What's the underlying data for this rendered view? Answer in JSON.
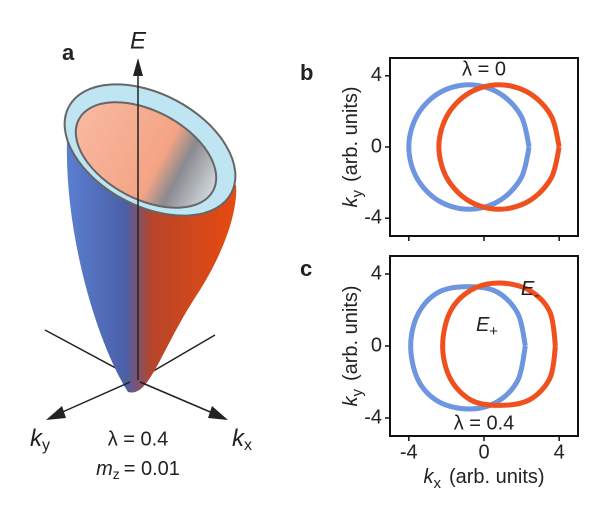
{
  "panel_a": {
    "label": "a",
    "axis_e": "E",
    "ky": {
      "symbol": "k",
      "sub": "y"
    },
    "kx": {
      "symbol": "k",
      "sub": "x"
    },
    "lambda": "λ = 0.4",
    "mz": {
      "symbol": "m",
      "sub": "z",
      "text": "= 0.01"
    }
  },
  "chart_data": [
    {
      "type": "line",
      "panel_label": "b",
      "ylabel": {
        "symbol": "k",
        "sub": "y",
        "text": "(arb. units)"
      },
      "xlim": [
        -5,
        5
      ],
      "ylim": [
        -5,
        5
      ],
      "xticks": [
        -4,
        0,
        4
      ],
      "yticks": [
        -4,
        0,
        4
      ],
      "show_xtick_labels": false,
      "annotations": [
        {
          "text": "λ = 0"
        }
      ],
      "series": [
        {
          "color": "#6d95e0",
          "x": [
            2.4,
            1.97,
            0.8,
            -0.8,
            -2.4,
            -3.57,
            -4.0,
            -3.57,
            -2.4,
            -0.8,
            0.8,
            1.97,
            2.4
          ],
          "values": [
            0,
            1.75,
            3.03,
            3.5,
            3.03,
            1.75,
            0,
            -1.75,
            -3.03,
            -3.5,
            -3.03,
            -1.75,
            0
          ]
        },
        {
          "color": "#f0501e",
          "x": [
            4.0,
            3.57,
            2.4,
            0.8,
            -0.8,
            -1.97,
            -2.4,
            -1.97,
            -0.8,
            0.8,
            2.4,
            3.57,
            4.0
          ],
          "values": [
            0,
            1.75,
            3.03,
            3.5,
            3.03,
            1.75,
            0,
            -1.75,
            -3.03,
            -3.5,
            -3.03,
            -1.75,
            0
          ]
        }
      ]
    },
    {
      "type": "line",
      "panel_label": "c",
      "ylabel": {
        "symbol": "k",
        "sub": "y",
        "text": "(arb. units)"
      },
      "xlabel": {
        "symbol": "k",
        "sub": "x",
        "text": "(arb. units)"
      },
      "xlim": [
        -5,
        5
      ],
      "ylim": [
        -5,
        5
      ],
      "xticks": [
        -4,
        0,
        4
      ],
      "yticks": [
        -4,
        0,
        4
      ],
      "show_xtick_labels": true,
      "annotations": [
        {
          "symbol": "E",
          "sub": "-"
        },
        {
          "symbol": "E",
          "sub": "+"
        },
        {
          "text": "λ = 0.4"
        }
      ],
      "series": [
        {
          "color": "#6d95e0",
          "x": [
            2.2,
            1.8,
            0.7,
            -0.8,
            -2.4,
            -3.5,
            -3.9,
            -3.5,
            -2.4,
            -0.8,
            0.7,
            1.8,
            2.2
          ],
          "values": [
            0,
            1.8,
            3.0,
            3.3,
            3.0,
            1.8,
            0,
            -1.9,
            -3.1,
            -3.5,
            -3.1,
            -1.9,
            0
          ]
        },
        {
          "color": "#f0501e",
          "x": [
            3.8,
            3.5,
            2.4,
            0.8,
            -0.7,
            -1.8,
            -2.2,
            -1.8,
            -0.7,
            0.8,
            2.4,
            3.5,
            3.8
          ],
          "values": [
            0,
            1.9,
            3.1,
            3.5,
            3.1,
            1.9,
            0,
            -1.8,
            -3.0,
            -3.3,
            -3.0,
            -1.8,
            0
          ]
        }
      ]
    }
  ]
}
